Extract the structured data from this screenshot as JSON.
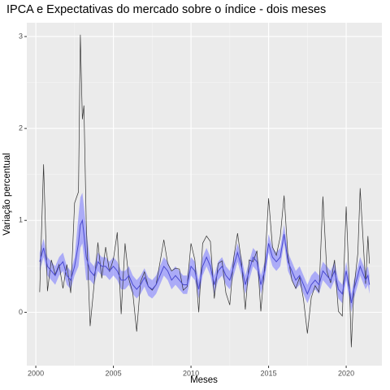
{
  "chart_data": {
    "type": "line",
    "title": "IPCA e Expectativas do mercado sobre o índice - dois meses",
    "x_label": "Meses",
    "y_label": "Variação percentual",
    "x": [
      2000.25,
      2000.5,
      2000.75,
      2001.0,
      2001.25,
      2001.5,
      2001.75,
      2002.0,
      2002.25,
      2002.5,
      2002.75,
      2002.87,
      2003.0,
      2003.1,
      2003.25,
      2003.5,
      2003.75,
      2004.0,
      2004.25,
      2004.5,
      2004.75,
      2005.0,
      2005.25,
      2005.5,
      2005.75,
      2006.0,
      2006.25,
      2006.5,
      2006.75,
      2007.0,
      2007.25,
      2007.5,
      2007.75,
      2008.0,
      2008.25,
      2008.5,
      2008.75,
      2009.0,
      2009.25,
      2009.5,
      2009.75,
      2010.0,
      2010.25,
      2010.5,
      2010.75,
      2011.0,
      2011.25,
      2011.5,
      2011.75,
      2012.0,
      2012.25,
      2012.5,
      2012.75,
      2013.0,
      2013.25,
      2013.5,
      2013.75,
      2014.0,
      2014.25,
      2014.5,
      2014.75,
      2015.0,
      2015.25,
      2015.5,
      2015.75,
      2016.0,
      2016.25,
      2016.5,
      2016.75,
      2017.0,
      2017.25,
      2017.5,
      2017.75,
      2018.0,
      2018.25,
      2018.5,
      2018.75,
      2019.0,
      2019.25,
      2019.5,
      2019.75,
      2020.0,
      2020.25,
      2020.33,
      2020.5,
      2020.75,
      2020.9,
      2021.25,
      2021.4,
      2021.5
    ],
    "series": [
      {
        "color": "#333333",
        "values": [
          0.22,
          1.61,
          0.23,
          0.57,
          0.41,
          0.52,
          0.26,
          0.52,
          0.21,
          1.19,
          1.31,
          3.02,
          2.1,
          2.25,
          0.97,
          -0.15,
          0.29,
          0.76,
          0.37,
          0.71,
          0.44,
          0.58,
          0.87,
          -0.02,
          0.75,
          0.36,
          0.21,
          -0.21,
          0.33,
          0.44,
          0.28,
          0.24,
          0.3,
          0.54,
          0.79,
          0.53,
          0.45,
          0.48,
          0.47,
          0.24,
          0.28,
          0.75,
          0.57,
          0.0,
          0.75,
          0.83,
          0.77,
          0.15,
          0.53,
          0.56,
          0.21,
          0.08,
          0.59,
          0.86,
          0.55,
          0.03,
          0.57,
          0.55,
          0.67,
          0.01,
          0.51,
          1.24,
          0.71,
          0.62,
          0.82,
          1.27,
          0.61,
          0.35,
          0.26,
          0.38,
          0.14,
          -0.23,
          0.16,
          0.29,
          0.22,
          1.26,
          0.45,
          0.32,
          0.57,
          0.01,
          -0.04,
          1.15,
          0.07,
          -0.38,
          0.26,
          0.64,
          1.35,
          0.31,
          0.83,
          0.53
        ]
      },
      {
        "color": "#4a4ad0",
        "values": [
          0.55,
          0.7,
          0.5,
          0.45,
          0.4,
          0.5,
          0.55,
          0.4,
          0.35,
          0.5,
          0.75,
          0.95,
          1.0,
          0.85,
          0.6,
          0.45,
          0.4,
          0.55,
          0.5,
          0.5,
          0.45,
          0.5,
          0.45,
          0.35,
          0.35,
          0.4,
          0.3,
          0.25,
          0.3,
          0.38,
          0.28,
          0.25,
          0.3,
          0.4,
          0.5,
          0.45,
          0.35,
          0.4,
          0.35,
          0.3,
          0.3,
          0.5,
          0.45,
          0.25,
          0.5,
          0.6,
          0.5,
          0.3,
          0.45,
          0.5,
          0.4,
          0.35,
          0.5,
          0.65,
          0.5,
          0.3,
          0.45,
          0.6,
          0.55,
          0.3,
          0.45,
          0.75,
          0.6,
          0.55,
          0.6,
          0.85,
          0.55,
          0.45,
          0.35,
          0.4,
          0.3,
          0.2,
          0.3,
          0.35,
          0.3,
          0.45,
          0.4,
          0.35,
          0.45,
          0.25,
          0.2,
          0.45,
          0.2,
          0.1,
          0.25,
          0.4,
          0.5,
          0.35,
          0.4,
          0.3
        ]
      },
      {
        "color": "#8080ff",
        "lower": [
          0.45,
          0.6,
          0.4,
          0.35,
          0.3,
          0.4,
          0.45,
          0.3,
          0.25,
          0.4,
          0.5,
          0.7,
          0.75,
          0.6,
          0.35,
          0.35,
          0.3,
          0.45,
          0.4,
          0.4,
          0.35,
          0.4,
          0.35,
          0.25,
          0.25,
          0.3,
          0.2,
          0.15,
          0.2,
          0.28,
          0.18,
          0.15,
          0.2,
          0.3,
          0.4,
          0.35,
          0.25,
          0.3,
          0.25,
          0.2,
          0.2,
          0.4,
          0.35,
          0.15,
          0.4,
          0.5,
          0.4,
          0.2,
          0.35,
          0.4,
          0.3,
          0.25,
          0.4,
          0.55,
          0.4,
          0.2,
          0.35,
          0.5,
          0.45,
          0.2,
          0.35,
          0.65,
          0.5,
          0.45,
          0.5,
          0.75,
          0.45,
          0.35,
          0.25,
          0.3,
          0.2,
          0.1,
          0.2,
          0.25,
          0.2,
          0.35,
          0.3,
          0.25,
          0.35,
          0.15,
          0.1,
          0.35,
          0.1,
          0,
          0.15,
          0.3,
          0.4,
          0.25,
          0.3,
          0.2
        ],
        "upper": [
          0.65,
          0.8,
          0.6,
          0.55,
          0.5,
          0.6,
          0.65,
          0.5,
          0.45,
          0.6,
          1.05,
          1.25,
          1.3,
          1.15,
          0.9,
          0.55,
          0.5,
          0.65,
          0.6,
          0.6,
          0.55,
          0.6,
          0.55,
          0.45,
          0.45,
          0.5,
          0.4,
          0.35,
          0.4,
          0.48,
          0.38,
          0.35,
          0.4,
          0.5,
          0.6,
          0.55,
          0.45,
          0.5,
          0.45,
          0.4,
          0.4,
          0.6,
          0.55,
          0.35,
          0.6,
          0.7,
          0.6,
          0.4,
          0.55,
          0.6,
          0.5,
          0.45,
          0.6,
          0.75,
          0.6,
          0.4,
          0.55,
          0.7,
          0.65,
          0.4,
          0.55,
          0.85,
          0.7,
          0.65,
          0.7,
          0.95,
          0.65,
          0.55,
          0.45,
          0.5,
          0.4,
          0.3,
          0.4,
          0.45,
          0.4,
          0.55,
          0.5,
          0.45,
          0.55,
          0.35,
          0.3,
          0.55,
          0.3,
          0.2,
          0.35,
          0.5,
          0.6,
          0.45,
          0.5,
          0.4
        ]
      }
    ],
    "xlim": [
      1999.42,
      2022.3
    ],
    "ylim": [
      -0.58,
      3.15
    ],
    "xticks": [
      2000,
      2005,
      2010,
      2015,
      2020
    ],
    "yticks": [
      0,
      1,
      2,
      3
    ],
    "xminor": [
      2002.5,
      2007.5,
      2012.5,
      2017.5
    ],
    "yminor": [
      0.5,
      1.5,
      2.5
    ],
    "grid": true
  }
}
